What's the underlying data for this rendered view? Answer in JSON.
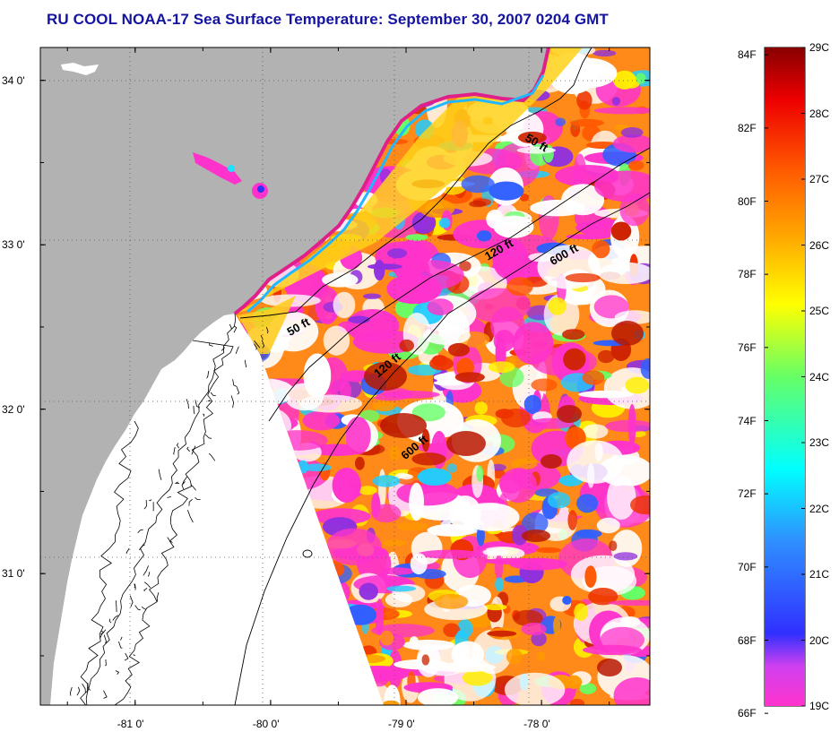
{
  "title": "RU COOL  NOAA-17  Sea Surface Temperature:  September 30, 2007 0204 GMT",
  "map": {
    "lon_range": [
      -81.7,
      -77.2
    ],
    "lat_range": [
      30.2,
      34.2
    ],
    "lat_ticks": [
      {
        "value": 34.0,
        "label": "34 0'"
      },
      {
        "value": 33.0,
        "label": "33 0'"
      },
      {
        "value": 32.0,
        "label": "32 0'"
      },
      {
        "value": 31.0,
        "label": "31 0'"
      }
    ],
    "lon_ticks": [
      {
        "value": -81.0,
        "label": "-81 0'"
      },
      {
        "value": -80.0,
        "label": "-80 0'"
      },
      {
        "value": -79.0,
        "label": "-79 0'"
      },
      {
        "value": -78.0,
        "label": "-78 0'"
      }
    ],
    "colors": {
      "land": "#b2b2b2",
      "no_data": "#ffffff",
      "frame": "#000000"
    },
    "isobath_labels": [
      {
        "text": "50 ft",
        "depth": 50,
        "lon": -79.78,
        "lat": 32.48,
        "angle": -30
      },
      {
        "text": "120 ft",
        "depth": 120,
        "lon": -79.12,
        "lat": 32.25,
        "angle": -40
      },
      {
        "text": "600 ft",
        "depth": 600,
        "lon": -78.92,
        "lat": 31.75,
        "angle": -40
      },
      {
        "text": "50 ft",
        "depth": 50,
        "lon": -78.05,
        "lat": 33.6,
        "angle": 30
      },
      {
        "text": "120 ft",
        "depth": 120,
        "lon": -78.3,
        "lat": 32.95,
        "angle": -30
      },
      {
        "text": "600 ft",
        "depth": 600,
        "lon": -77.82,
        "lat": 32.92,
        "angle": -30
      }
    ]
  },
  "colorbar": {
    "f_labels": [
      "84F",
      "82F",
      "80F",
      "78F",
      "76F",
      "74F",
      "72F",
      "70F",
      "68F",
      "66F"
    ],
    "c_labels": [
      "29C",
      "28C",
      "27C",
      "26C",
      "25C",
      "24C",
      "23C",
      "22C",
      "21C",
      "20C",
      "19C"
    ],
    "range_c": [
      19,
      29
    ],
    "stops": [
      {
        "c": 19.0,
        "color": "#ff33cc"
      },
      {
        "c": 19.6,
        "color": "#d040f0"
      },
      {
        "c": 20.1,
        "color": "#3030ff"
      },
      {
        "c": 21.5,
        "color": "#2f8fff"
      },
      {
        "c": 22.6,
        "color": "#00ffff"
      },
      {
        "c": 24.0,
        "color": "#66ff66"
      },
      {
        "c": 25.1,
        "color": "#ffff00"
      },
      {
        "c": 26.1,
        "color": "#ffaa00"
      },
      {
        "c": 27.2,
        "color": "#ff5500"
      },
      {
        "c": 28.2,
        "color": "#ee0000"
      },
      {
        "c": 29.0,
        "color": "#880000"
      }
    ]
  }
}
